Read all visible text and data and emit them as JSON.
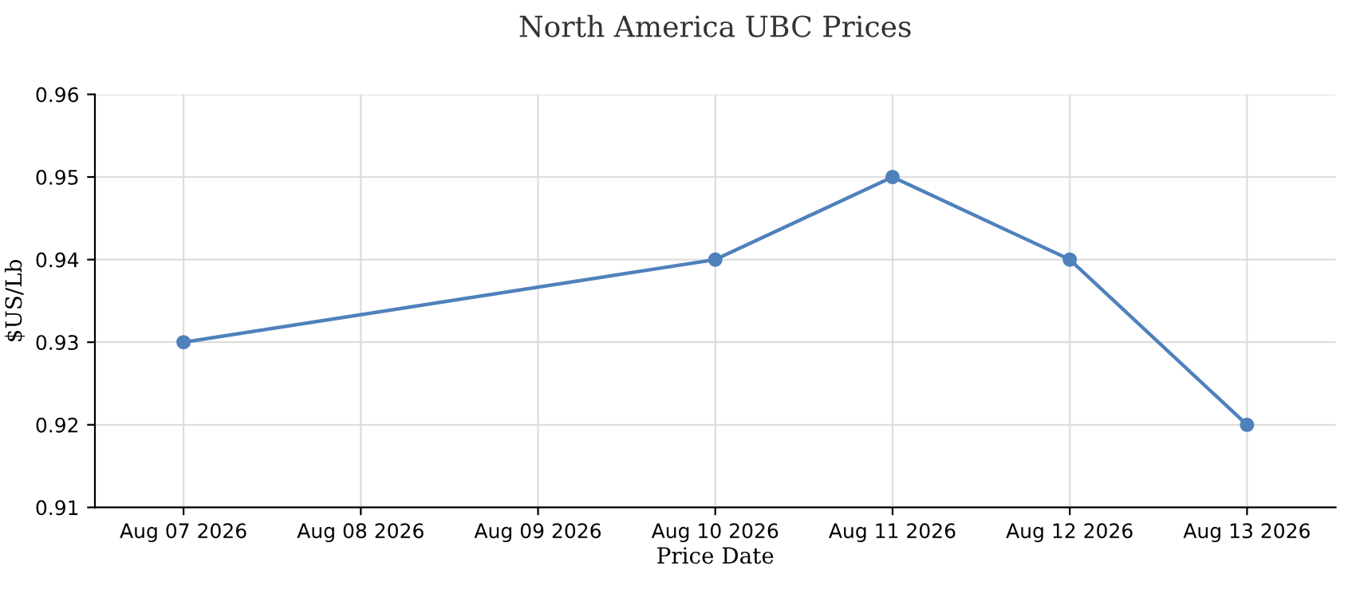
{
  "chart_data": {
    "type": "line",
    "title": "North America UBC Prices",
    "xlabel": "Price Date",
    "ylabel": "$US/Lb",
    "x": [
      "2026-08-07",
      "2026-08-10",
      "2026-08-11",
      "2026-08-12",
      "2026-08-13"
    ],
    "series": [
      {
        "color": "#4f81bc",
        "values": [
          0.93,
          0.94,
          0.95,
          0.94,
          0.92
        ]
      }
    ],
    "xlim": [
      "2026-08-06T12:00",
      "2026-08-13T12:00"
    ],
    "xticks": [
      {
        "value": "2026-08-07",
        "label": "Aug 07 2026"
      },
      {
        "value": "2026-08-08",
        "label": "Aug 08 2026"
      },
      {
        "value": "2026-08-09",
        "label": "Aug 09 2026"
      },
      {
        "value": "2026-08-10",
        "label": "Aug 10 2026"
      },
      {
        "value": "2026-08-11",
        "label": "Aug 11 2026"
      },
      {
        "value": "2026-08-12",
        "label": "Aug 12 2026"
      },
      {
        "value": "2026-08-13",
        "label": "Aug 13 2026"
      }
    ],
    "ylim": [
      0.91,
      0.96
    ],
    "yticks": [
      0.91,
      0.92,
      0.93,
      0.94,
      0.95,
      0.96
    ],
    "grid": true,
    "marker": "circle",
    "line_style": "solid"
  }
}
